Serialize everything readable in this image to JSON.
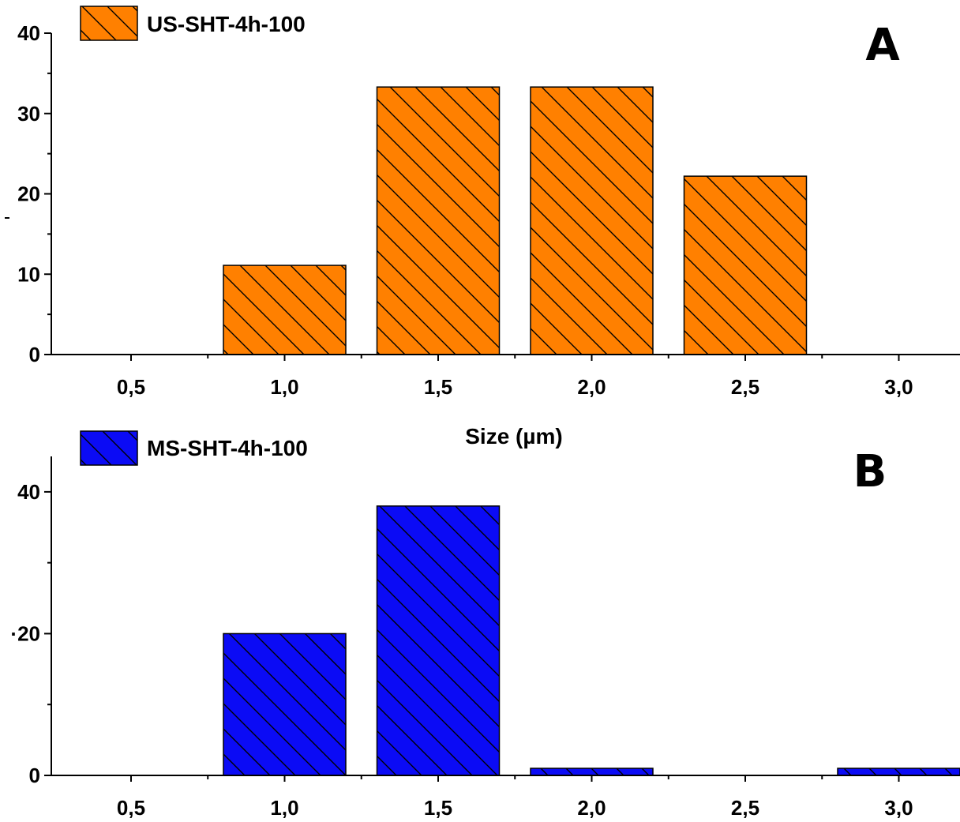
{
  "chart_data": [
    {
      "type": "bar",
      "panel_label": "B",
      "legend": "MS-SHT-4h-100",
      "xlabel": "",
      "ylabel": "",
      "categories": [
        "0,5",
        "1,0",
        "1,5",
        "2,0",
        "2,5",
        "3,0"
      ],
      "x": [
        0.5,
        1.0,
        1.5,
        2.0,
        2.5,
        3.0
      ],
      "values": [
        0,
        20,
        38,
        1,
        0,
        1
      ],
      "ylim": [
        0,
        45
      ],
      "yticks": [
        0,
        20,
        40
      ],
      "ytick_labels": [
        "0",
        "·20",
        "40"
      ],
      "color": "#0b0bf5",
      "hatch": "backslash",
      "legend_position": "top-left",
      "panel_label_position": "top-right",
      "grid": false
    },
    {
      "type": "bar",
      "panel_label": "A",
      "legend": "US-SHT-4h-100",
      "xlabel": "Size (µm)",
      "ylabel": "",
      "categories": [
        "0,5",
        "1,0",
        "1,5",
        "2,0",
        "2,5",
        "3,0"
      ],
      "x": [
        0.5,
        1.0,
        1.5,
        2.0,
        2.5,
        3.0
      ],
      "values": [
        0,
        11.1,
        33.3,
        33.3,
        22.2,
        0
      ],
      "ylim": [
        0,
        40
      ],
      "yticks": [
        0,
        10,
        20,
        30,
        40
      ],
      "ytick_labels": [
        "0",
        "10",
        "20",
        "30",
        "40"
      ],
      "color": "#ff8000",
      "hatch": "backslash",
      "legend_position": "top-left",
      "panel_label_position": "top-right",
      "grid": false
    }
  ]
}
